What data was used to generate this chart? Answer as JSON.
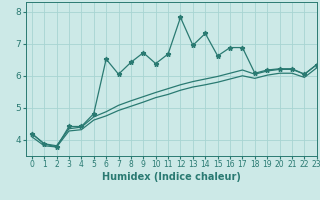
{
  "title": "",
  "xlabel": "Humidex (Indice chaleur)",
  "ylabel": "",
  "bg_color": "#cce9e7",
  "grid_color": "#a8d4d2",
  "line_color": "#2a7a72",
  "xlim": [
    -0.5,
    23
  ],
  "ylim": [
    3.5,
    8.3
  ],
  "xticks": [
    0,
    1,
    2,
    3,
    4,
    5,
    6,
    7,
    8,
    9,
    10,
    11,
    12,
    13,
    14,
    15,
    16,
    17,
    18,
    19,
    20,
    21,
    22,
    23
  ],
  "yticks": [
    4,
    5,
    6,
    7,
    8
  ],
  "line1_x": [
    0,
    1,
    2,
    3,
    4,
    5,
    6,
    7,
    8,
    9,
    10,
    11,
    12,
    13,
    14,
    15,
    16,
    17,
    18,
    19,
    20,
    21,
    22,
    23
  ],
  "line1_y": [
    4.2,
    3.88,
    3.78,
    4.42,
    4.42,
    4.82,
    6.52,
    6.05,
    6.42,
    6.72,
    6.38,
    6.68,
    7.82,
    6.95,
    7.32,
    6.62,
    6.88,
    6.88,
    6.08,
    6.18,
    6.22,
    6.22,
    6.05,
    6.35
  ],
  "line2_x": [
    0,
    1,
    2,
    3,
    4,
    5,
    6,
    7,
    8,
    9,
    10,
    11,
    12,
    13,
    14,
    15,
    16,
    17,
    18,
    19,
    20,
    21,
    22,
    23
  ],
  "line2_y": [
    4.2,
    3.88,
    3.82,
    4.35,
    4.4,
    4.72,
    4.88,
    5.08,
    5.22,
    5.35,
    5.48,
    5.6,
    5.72,
    5.82,
    5.9,
    5.98,
    6.08,
    6.18,
    6.05,
    6.15,
    6.2,
    6.2,
    6.05,
    6.35
  ],
  "line3_x": [
    0,
    1,
    2,
    3,
    4,
    5,
    6,
    7,
    8,
    9,
    10,
    11,
    12,
    13,
    14,
    15,
    16,
    17,
    18,
    19,
    20,
    21,
    22,
    23
  ],
  "line3_y": [
    4.1,
    3.82,
    3.78,
    4.28,
    4.32,
    4.62,
    4.75,
    4.92,
    5.05,
    5.18,
    5.32,
    5.42,
    5.55,
    5.65,
    5.72,
    5.8,
    5.9,
    6.0,
    5.92,
    6.02,
    6.08,
    6.08,
    5.95,
    6.25
  ]
}
